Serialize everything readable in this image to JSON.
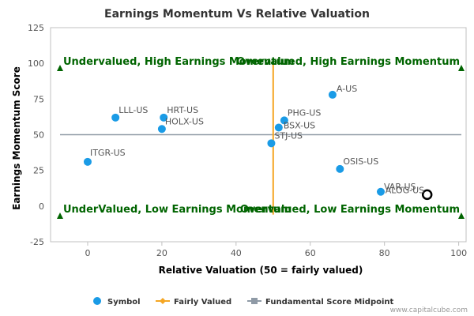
{
  "chart_data": {
    "type": "scatter",
    "title": "Earnings Momentum Vs Relative Valuation",
    "xlabel": "Relative Valuation (50 = fairly valued)",
    "ylabel": "Earnings Momentum Score",
    "xlim": [
      -10,
      102
    ],
    "ylim": [
      -25,
      125
    ],
    "xticks": [
      0,
      20,
      40,
      60,
      80,
      100
    ],
    "yticks": [
      -25,
      0,
      25,
      50,
      75,
      100,
      125
    ],
    "grid": false,
    "legend_placement": "bottom",
    "series": [
      {
        "name": "Symbol",
        "color": "#1a9be6",
        "points": [
          {
            "label": "ITGR-US",
            "x": 0,
            "y": 31
          },
          {
            "label": "LLL-US",
            "x": 7.5,
            "y": 62
          },
          {
            "label": "HRT-US",
            "x": 20.5,
            "y": 62
          },
          {
            "label": "HOLX-US",
            "x": 20,
            "y": 54
          },
          {
            "label": "STJ-US",
            "x": 49.5,
            "y": 44
          },
          {
            "label": "BSX-US",
            "x": 51.5,
            "y": 55
          },
          {
            "label": "PHG-US",
            "x": 53,
            "y": 60
          },
          {
            "label": "A-US",
            "x": 66,
            "y": 78
          },
          {
            "label": "OSIS-US",
            "x": 68,
            "y": 26
          },
          {
            "label": "VAR-US",
            "x": 79,
            "y": 10
          },
          {
            "label": "ALOG-US",
            "x": 91.5,
            "y": 8,
            "highlight": true
          }
        ]
      },
      {
        "name": "Fairly Valued",
        "color": "#f5a623",
        "line": {
          "x": 50
        }
      },
      {
        "name": "Fundamental Score Midpoint",
        "color": "#8f9aa6",
        "line": {
          "y": 50
        }
      }
    ],
    "quadrant_labels": {
      "top_left": "Undervalued, High Earnings Momentum",
      "top_right": "Overvalued, High Earnings Momentum",
      "bottom_left": "UnderValued, Low Earnings Momentum",
      "bottom_right": "Overvalued, Low Earnings Momentum",
      "color": "#006400"
    },
    "credit": "www.capitalcube.com"
  }
}
